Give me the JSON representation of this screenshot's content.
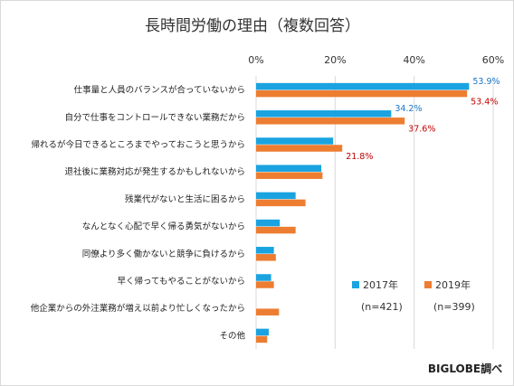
{
  "chart_data": {
    "type": "bar",
    "orientation": "horizontal",
    "title": "長時間労働の理由（複数回答）",
    "xlim": [
      0,
      60
    ],
    "xticks": [
      "0%",
      "20%",
      "40%",
      "60%"
    ],
    "grid": true,
    "legend_position": "bottom-right",
    "categories": [
      "仕事量と人員のバランスが合っていないから",
      "自分で仕事をコントロールできない業務だから",
      "帰れるが今日できるところまでやっておこうと思うから",
      "退社後に業務対応が発生するかもしれないから",
      "残業代がないと生活に困るから",
      "なんとなく心配で早く帰る勇気がないから",
      "同僚より多く働かないと競争に負けるから",
      "早く帰ってもやることがないから",
      "他企業からの外注業務が増え以前より忙しくなったから",
      "その他"
    ],
    "series": [
      {
        "name": "2017年",
        "n_label": "(n=421)",
        "color": "#1aa3e0",
        "values": [
          53.9,
          34.2,
          19.5,
          16.5,
          10.0,
          6.0,
          4.5,
          3.8,
          0,
          3.2
        ],
        "labels": [
          "53.9%",
          "34.2%",
          "",
          "",
          "",
          "",
          "",
          "",
          "",
          ""
        ],
        "label_color": "#1a75c8"
      },
      {
        "name": "2019年",
        "n_label": "(n=399)",
        "color": "#ed7d31",
        "values": [
          53.4,
          37.6,
          21.8,
          16.8,
          12.5,
          10.0,
          5.0,
          4.5,
          5.8,
          2.8
        ],
        "labels": [
          "53.4%",
          "37.6%",
          "21.8%",
          "",
          "",
          "",
          "",
          "",
          "",
          ""
        ],
        "label_color": "#c00000"
      }
    ]
  },
  "source": "BIGLOBE調べ"
}
